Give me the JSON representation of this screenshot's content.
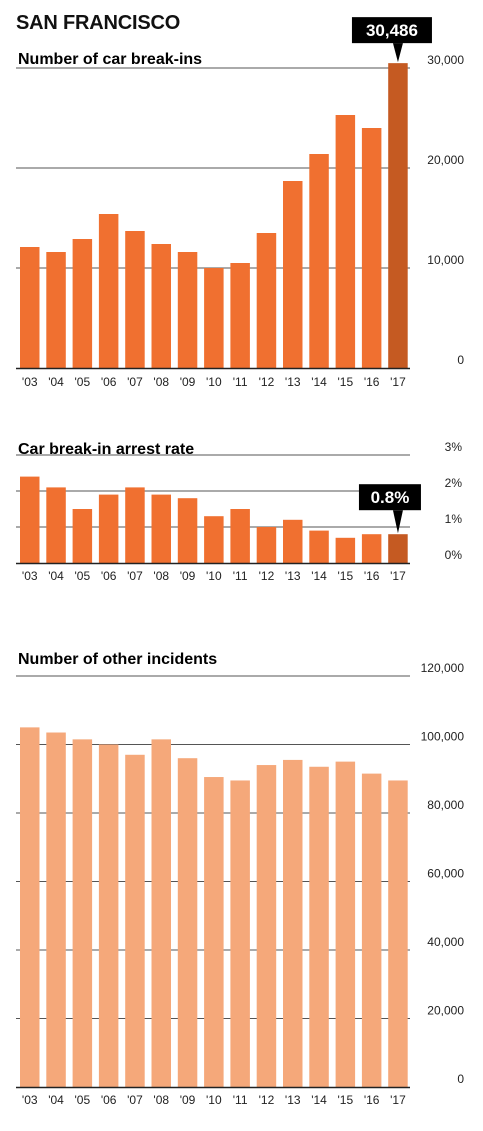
{
  "page": {
    "title": "SAN FRANCISCO"
  },
  "chart_data": [
    {
      "type": "bar",
      "title": "Number of car break-ins",
      "categories": [
        "'03",
        "'04",
        "'05",
        "'06",
        "'07",
        "'08",
        "'09",
        "'10",
        "'11",
        "'12",
        "'13",
        "'14",
        "'15",
        "'16",
        "'17"
      ],
      "values": [
        12100,
        11600,
        12900,
        15400,
        13700,
        12400,
        11600,
        10000,
        10500,
        13500,
        18700,
        21400,
        25300,
        24000,
        30486
      ],
      "ylim": [
        0,
        30000
      ],
      "yticks": [
        0,
        10000,
        20000,
        30000
      ],
      "ytick_labels": [
        "0",
        "10,000",
        "20,000",
        "30,000"
      ],
      "highlight_index": 14,
      "callout": "30,486",
      "color": "#F07030",
      "highlight_color": "#C55A22",
      "grid": true
    },
    {
      "type": "bar",
      "title": "Car break-in arrest rate",
      "categories": [
        "'03",
        "'04",
        "'05",
        "'06",
        "'07",
        "'08",
        "'09",
        "'10",
        "'11",
        "'12",
        "'13",
        "'14",
        "'15",
        "'16",
        "'17"
      ],
      "values": [
        2.4,
        2.1,
        1.5,
        1.9,
        2.1,
        1.9,
        1.8,
        1.3,
        1.5,
        1.0,
        1.2,
        0.9,
        0.7,
        0.8,
        0.8
      ],
      "ylim": [
        0,
        3
      ],
      "yticks": [
        0,
        1,
        2,
        3
      ],
      "ytick_labels": [
        "0%",
        "1%",
        "2%",
        "3%"
      ],
      "highlight_index": 14,
      "callout": "0.8%",
      "color": "#F07030",
      "highlight_color": "#C55A22",
      "grid": true
    },
    {
      "type": "bar",
      "title": "Number of other incidents",
      "categories": [
        "'03",
        "'04",
        "'05",
        "'06",
        "'07",
        "'08",
        "'09",
        "'10",
        "'11",
        "'12",
        "'13",
        "'14",
        "'15",
        "'16",
        "'17"
      ],
      "values": [
        105000,
        103500,
        101500,
        100000,
        97000,
        101500,
        96000,
        90500,
        89500,
        94000,
        95500,
        93500,
        95000,
        91500,
        89500
      ],
      "ylim": [
        0,
        120000
      ],
      "yticks": [
        0,
        20000,
        40000,
        60000,
        80000,
        100000,
        120000
      ],
      "ytick_labels": [
        "0",
        "20,000",
        "40,000",
        "60,000",
        "80,000",
        "100,000",
        "120,000"
      ],
      "highlight_index": null,
      "callout": "",
      "color": "#F5A87A",
      "highlight_color": "#F5A87A",
      "grid": true
    }
  ]
}
